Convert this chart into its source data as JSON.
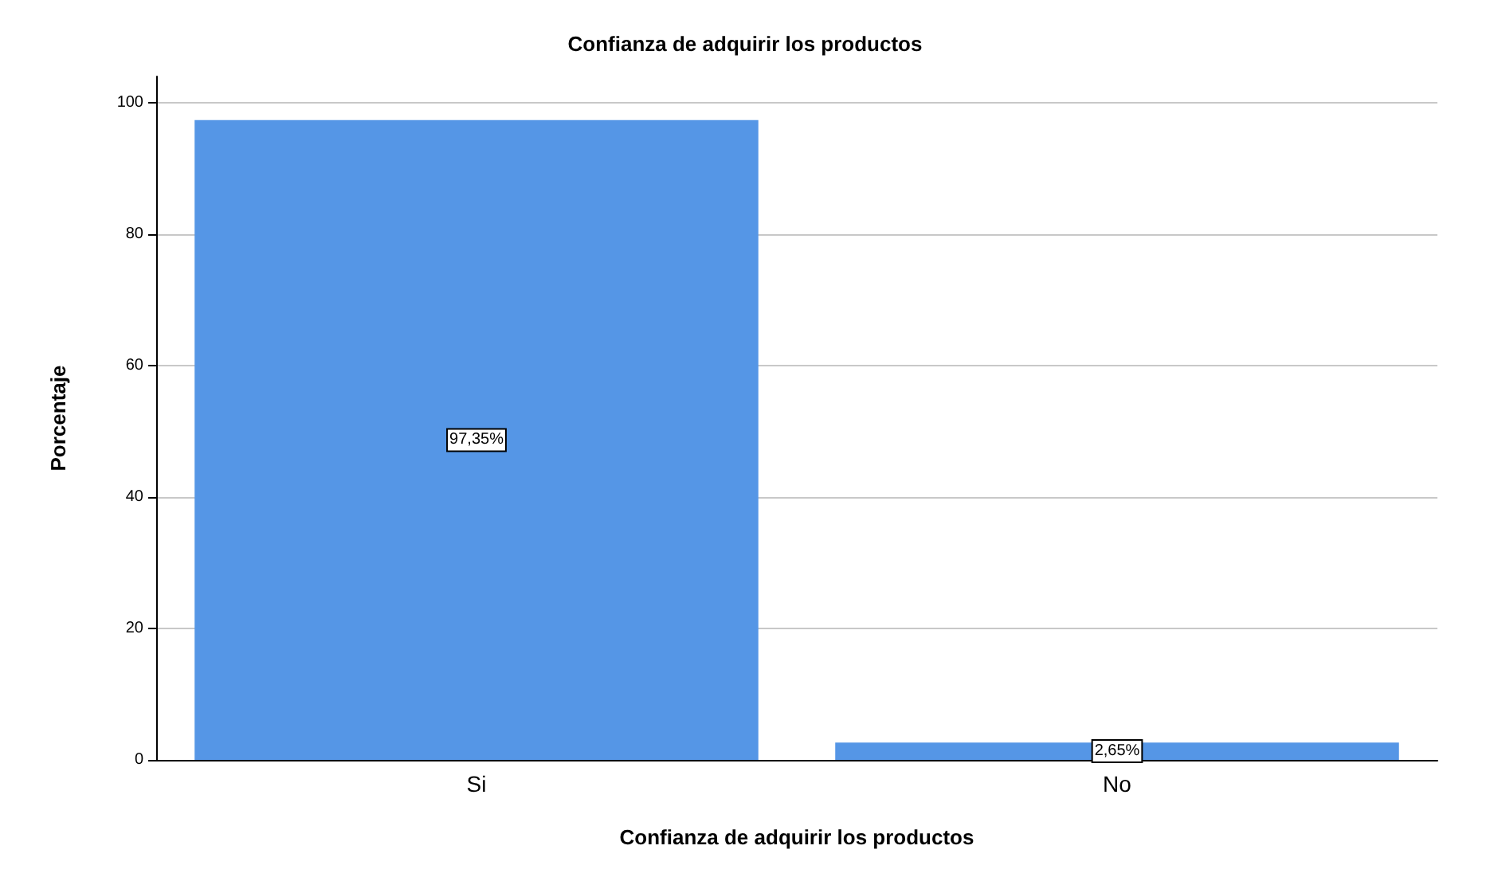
{
  "chart_data": {
    "type": "bar",
    "title": "Confianza de adquirir los productos",
    "xlabel": "Confianza de adquirir los productos",
    "ylabel": "Porcentaje",
    "categories": [
      "Si",
      "No"
    ],
    "values": [
      97.35,
      2.65
    ],
    "color": "#5596e6",
    "value_labels": [
      "97,35%",
      "2,65%"
    ],
    "ylim": [
      0,
      104
    ],
    "yticks": [
      0,
      20,
      40,
      60,
      80,
      100
    ],
    "grid": "y"
  }
}
